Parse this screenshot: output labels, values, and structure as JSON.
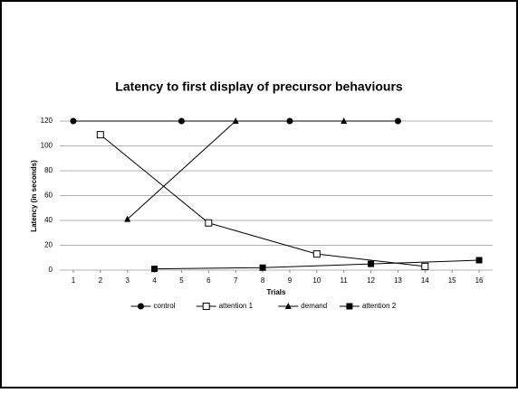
{
  "chart_data": {
    "type": "line",
    "title": "Latency to first display of precursor behaviours",
    "x_label": "Trials",
    "y_label": "Latency (in seconds)",
    "xlim": [
      0.5,
      16.5
    ],
    "xticks": [
      1,
      2,
      3,
      4,
      5,
      6,
      7,
      8,
      9,
      10,
      11,
      12,
      13,
      14,
      15,
      16
    ],
    "ylim": [
      0,
      120
    ],
    "yticks": [
      0,
      20,
      40,
      60,
      80,
      100,
      120
    ],
    "grid": true,
    "legend": "bottom",
    "series": [
      {
        "name": "control",
        "color": "#000000",
        "marker": "circle",
        "x": [
          1,
          5,
          9,
          13
        ],
        "values": [
          120,
          120,
          120,
          120
        ]
      },
      {
        "name": "attention 1",
        "color": "#000000",
        "marker": "open-square",
        "x": [
          2,
          6,
          10,
          14
        ],
        "values": [
          109,
          38,
          13,
          3
        ]
      },
      {
        "name": "demand",
        "color": "#000000",
        "marker": "triangle",
        "x": [
          3,
          7,
          11
        ],
        "values": [
          41,
          120,
          120
        ]
      },
      {
        "name": "attention 2",
        "color": "#000000",
        "marker": "square",
        "x": [
          4,
          8,
          12,
          16
        ],
        "values": [
          1,
          2,
          5,
          8
        ]
      }
    ]
  }
}
